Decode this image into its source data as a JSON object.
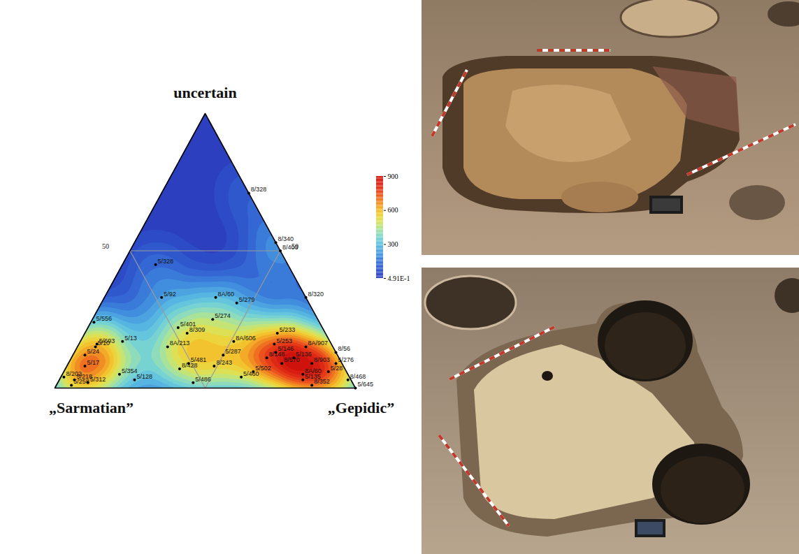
{
  "chart_data": {
    "type": "ternary",
    "axes": {
      "top": "uncertain",
      "left": "„Sarmatian”",
      "right": "„Gepidic”"
    },
    "ternary_ticks": [
      50
    ],
    "points": [
      {
        "label": "8/328",
        "sarmatian": 0,
        "gepidic": 29,
        "uncertain": 71
      },
      {
        "label": "5/328",
        "sarmatian": 44,
        "gepidic": 11,
        "uncertain": 45
      },
      {
        "label": "8/340",
        "sarmatian": 0,
        "gepidic": 47,
        "uncertain": 53
      },
      {
        "label": "8/403",
        "sarmatian": 0,
        "gepidic": 50,
        "uncertain": 50
      },
      {
        "label": "8/320",
        "sarmatian": 0,
        "gepidic": 67,
        "uncertain": 33
      },
      {
        "label": "5/92",
        "sarmatian": 48,
        "gepidic": 19,
        "uncertain": 33
      },
      {
        "label": "8A/60",
        "sarmatian": 30,
        "gepidic": 37,
        "uncertain": 33
      },
      {
        "label": "5/279",
        "sarmatian": 24,
        "gepidic": 45,
        "uncertain": 31
      },
      {
        "label": "5/556",
        "sarmatian": 75,
        "gepidic": 1,
        "uncertain": 24
      },
      {
        "label": "5/274",
        "sarmatian": 35,
        "gepidic": 40,
        "uncertain": 25
      },
      {
        "label": "5/401",
        "sarmatian": 48,
        "gepidic": 30,
        "uncertain": 22
      },
      {
        "label": "8/309",
        "sarmatian": 46,
        "gepidic": 34,
        "uncertain": 20
      },
      {
        "label": "8A/606",
        "sarmatian": 32,
        "gepidic": 51,
        "uncertain": 17
      },
      {
        "label": "5/233",
        "sarmatian": 16,
        "gepidic": 64,
        "uncertain": 20
      },
      {
        "label": "5/253",
        "sarmatian": 19,
        "gepidic": 65,
        "uncertain": 16
      },
      {
        "label": "5/693",
        "sarmatian": 78,
        "gepidic": 6,
        "uncertain": 16
      },
      {
        "label": "5/10",
        "sarmatian": 79,
        "gepidic": 6,
        "uncertain": 15
      },
      {
        "label": "5/13",
        "sarmatian": 69,
        "gepidic": 14,
        "uncertain": 17
      },
      {
        "label": "5/24",
        "sarmatian": 84,
        "gepidic": 4,
        "uncertain": 12
      },
      {
        "label": "8A/213",
        "sarmatian": 55,
        "gepidic": 30,
        "uncertain": 15
      },
      {
        "label": "8A/907",
        "sarmatian": 9,
        "gepidic": 76,
        "uncertain": 15
      },
      {
        "label": "5/146",
        "sarmatian": 20,
        "gepidic": 67,
        "uncertain": 13
      },
      {
        "label": "5/287",
        "sarmatian": 38,
        "gepidic": 50,
        "uncertain": 12
      },
      {
        "label": "8/148",
        "sarmatian": 24,
        "gepidic": 65,
        "uncertain": 11
      },
      {
        "label": "8/56",
        "sarmatian": 0,
        "gepidic": 87,
        "uncertain": 13
      },
      {
        "label": "5/17",
        "sarmatian": 86,
        "gepidic": 6,
        "uncertain": 8
      },
      {
        "label": "5/481",
        "sarmatian": 51,
        "gepidic": 40,
        "uncertain": 9
      },
      {
        "label": "8/428",
        "sarmatian": 55,
        "gepidic": 38,
        "uncertain": 7
      },
      {
        "label": "8/243",
        "sarmatian": 43,
        "gepidic": 49,
        "uncertain": 8
      },
      {
        "label": "8/570",
        "sarmatian": 20,
        "gepidic": 71,
        "uncertain": 9
      },
      {
        "label": "5/136",
        "sarmatian": 15,
        "gepidic": 74,
        "uncertain": 11
      },
      {
        "label": "8/903",
        "sarmatian": 10,
        "gepidic": 81,
        "uncertain": 9
      },
      {
        "label": "5/276",
        "sarmatian": 2,
        "gepidic": 89,
        "uncertain": 9
      },
      {
        "label": "5/28",
        "sarmatian": 6,
        "gepidic": 88,
        "uncertain": 6
      },
      {
        "label": "8A/60",
        "sarmatian": 15,
        "gepidic": 80,
        "uncertain": 5
      },
      {
        "label": "5/354",
        "sarmatian": 76,
        "gepidic": 19,
        "uncertain": 5
      },
      {
        "label": "5/502",
        "sarmatian": 31,
        "gepidic": 63,
        "uncertain": 6
      },
      {
        "label": "5/460",
        "sarmatian": 36,
        "gepidic": 60,
        "uncertain": 4
      },
      {
        "label": "5/135",
        "sarmatian": 16,
        "gepidic": 81,
        "uncertain": 3
      },
      {
        "label": "8/352",
        "sarmatian": 14,
        "gepidic": 85,
        "uncertain": 1
      },
      {
        "label": "5/128",
        "sarmatian": 72,
        "gepidic": 25,
        "uncertain": 3
      },
      {
        "label": "5/486",
        "sarmatian": 53,
        "gepidic": 45,
        "uncertain": 2
      },
      {
        "label": "8/202",
        "sarmatian": 95,
        "gepidic": 1,
        "uncertain": 4
      },
      {
        "label": "5/218",
        "sarmatian": 92,
        "gepidic": 5,
        "uncertain": 3
      },
      {
        "label": "5/258",
        "sarmatian": 94,
        "gepidic": 5,
        "uncertain": 1
      },
      {
        "label": "5/312",
        "sarmatian": 88,
        "gepidic": 10,
        "uncertain": 2
      },
      {
        "label": "8/468",
        "sarmatian": 1,
        "gepidic": 96,
        "uncertain": 3
      },
      {
        "label": "5/645",
        "sarmatian": 0,
        "gepidic": 100,
        "uncertain": 0
      }
    ],
    "density_colorbar": {
      "range": [
        0.491,
        900
      ],
      "ticks": [
        {
          "value": 0.491,
          "label": "4.91E-1"
        },
        300,
        600,
        900
      ]
    }
  }
}
